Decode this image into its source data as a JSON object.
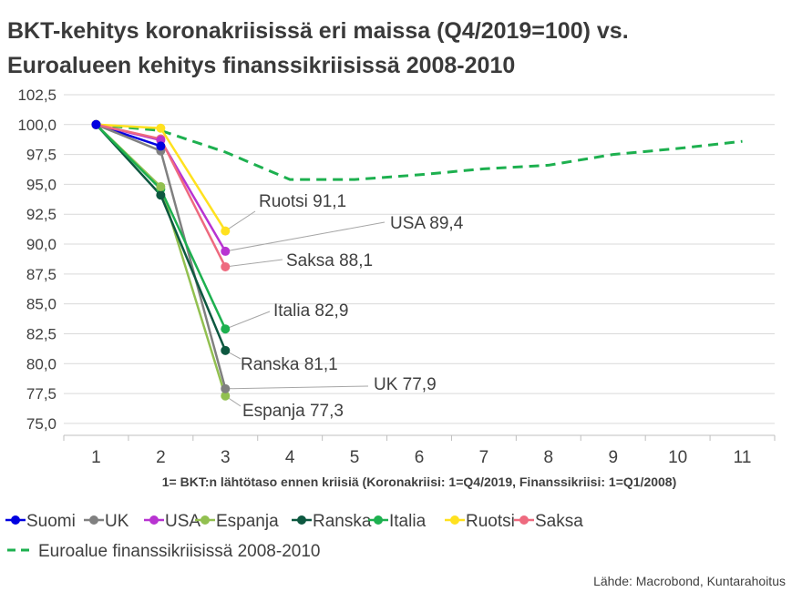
{
  "chart_data": {
    "type": "line",
    "title_lines": [
      "BKT-kehitys koronakriisissä eri maissa (Q4/2019=100) vs.",
      "Euroalueen kehitys finanssikriisissä 2008-2010"
    ],
    "xlabel": "1= BKT:n lähtötaso ennen kriisiä (Koronakriisi: 1=Q4/2019, Finanssikriisi: 1=Q1/2008)",
    "x_ticks": [
      "1",
      "2",
      "3",
      "4",
      "5",
      "6",
      "7",
      "8",
      "9",
      "10",
      "11"
    ],
    "y_ticks": [
      "75,0",
      "77,5",
      "80,0",
      "82,5",
      "85,0",
      "87,5",
      "90,0",
      "92,5",
      "95,0",
      "97,5",
      "100,0",
      "102,5"
    ],
    "ylim": [
      74,
      102.5
    ],
    "xlim": [
      0.5,
      11.5
    ],
    "grid": "horizontal",
    "legend_position": "bottom",
    "series": [
      {
        "name": "Suomi",
        "color": "#0000e0",
        "x": [
          1,
          2
        ],
        "values": [
          100,
          98.2
        ]
      },
      {
        "name": "UK",
        "color": "#808080",
        "x": [
          1,
          2,
          3
        ],
        "values": [
          100,
          97.8,
          77.9
        ]
      },
      {
        "name": "USA",
        "color": "#b833d1",
        "x": [
          1,
          2,
          3
        ],
        "values": [
          100,
          98.7,
          89.4
        ]
      },
      {
        "name": "Espanja",
        "color": "#92c050",
        "x": [
          1,
          2,
          3
        ],
        "values": [
          100,
          94.8,
          77.3
        ]
      },
      {
        "name": "Ranska",
        "color": "#0d5840",
        "x": [
          1,
          2,
          3
        ],
        "values": [
          100,
          94.1,
          81.1
        ]
      },
      {
        "name": "Italia",
        "color": "#1db04f",
        "x": [
          1,
          2,
          3
        ],
        "values": [
          100,
          94.6,
          82.9
        ]
      },
      {
        "name": "Ruotsi",
        "color": "#ffe11f",
        "x": [
          1,
          2,
          3
        ],
        "values": [
          100,
          99.7,
          91.1
        ]
      },
      {
        "name": "Saksa",
        "color": "#ee6a7f",
        "x": [
          1,
          2,
          3
        ],
        "values": [
          100,
          98.8,
          88.1
        ]
      }
    ],
    "euro_series": {
      "name": "Euroalue finanssikriisissä 2008-2010",
      "color": "#1db04f",
      "x": [
        1,
        2,
        3,
        4,
        5,
        6,
        7,
        8,
        9,
        10,
        11
      ],
      "values": [
        100,
        99.5,
        97.7,
        95.4,
        95.4,
        95.8,
        96.3,
        96.6,
        97.5,
        98.0,
        98.6
      ]
    },
    "annotations": [
      {
        "text": "Ruotsi 91,1",
        "series": "Ruotsi"
      },
      {
        "text": "USA 89,4",
        "series": "USA"
      },
      {
        "text": "Saksa 88,1",
        "series": "Saksa"
      },
      {
        "text": "Italia 82,9",
        "series": "Italia"
      },
      {
        "text": "Ranska 81,1",
        "series": "Ranska"
      },
      {
        "text": "UK 77,9",
        "series": "UK"
      },
      {
        "text": "Espanja 77,3",
        "series": "Espanja"
      }
    ],
    "source": "Lähde: Macrobond, Kuntarahoitus"
  }
}
